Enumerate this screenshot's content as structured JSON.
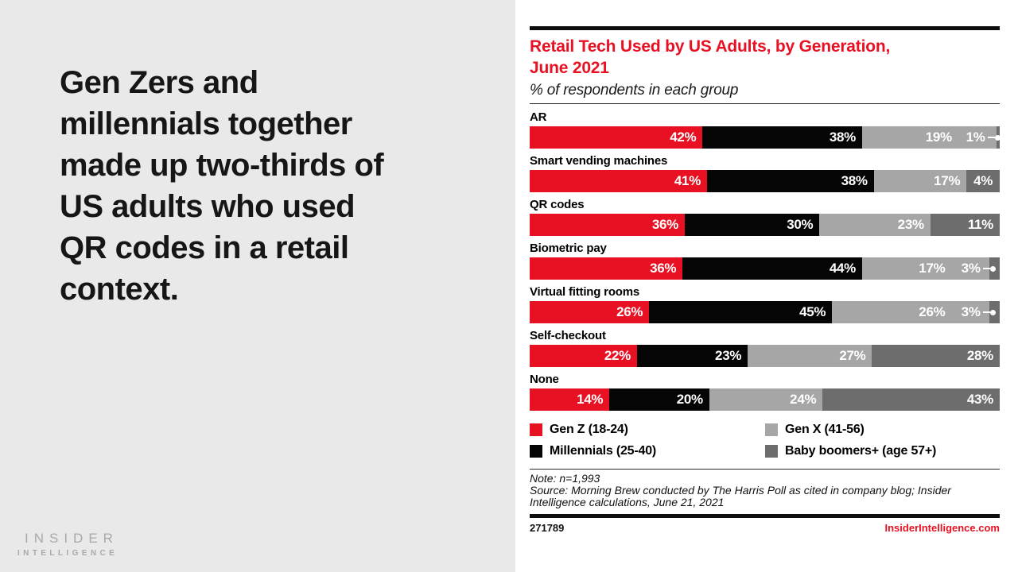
{
  "left_panel": {
    "headline": "Gen Zers and\nmillennials together\nmade up two-thirds of\nUS adults who used\nQR codes in a retail\ncontext.",
    "logo": {
      "line1": "INSIDER",
      "line2": "INTELLIGENCE"
    }
  },
  "chart": {
    "title": "Retail Tech Used by US Adults, by Generation,\nJune 2021",
    "subtitle": "% of respondents in each group",
    "note": "Note: n=1,993",
    "source": "Source: Morning Brew conducted by The Harris Poll as cited in company blog; Insider Intelligence calculations, June 21, 2021",
    "footer_id": "271789",
    "footer_site": "InsiderIntelligence.com"
  },
  "colors": {
    "accent_red": "#e81123",
    "black_segment": "#050505",
    "light_gray_segment": "#a6a6a6",
    "dark_gray_segment": "#6d6d6d",
    "left_panel_bg": "#e9e9e9",
    "logo_gray": "#a9a9a9"
  },
  "chart_data": {
    "type": "bar",
    "orientation": "horizontal-stacked",
    "title": "Retail Tech Used by US Adults, by Generation, June 2021",
    "subtitle": "% of respondents in each group",
    "unit": "%",
    "legend_position": "bottom",
    "categories": [
      "AR",
      "Smart vending machines",
      "QR codes",
      "Biometric pay",
      "Virtual fitting rooms",
      "Self-checkout",
      "None"
    ],
    "series": [
      {
        "name": "Gen Z (18-24)",
        "color": "#e81123",
        "values": [
          42,
          41,
          36,
          36,
          26,
          22,
          14
        ]
      },
      {
        "name": "Millennials (25-40)",
        "color": "#050505",
        "values": [
          38,
          38,
          30,
          44,
          45,
          23,
          20
        ]
      },
      {
        "name": "Gen X (41-56)",
        "color": "#a6a6a6",
        "values": [
          19,
          17,
          23,
          17,
          26,
          27,
          24
        ]
      },
      {
        "name": "Baby boomers+ (age 57+)",
        "color": "#6d6d6d",
        "values": [
          1,
          4,
          11,
          3,
          3,
          28,
          43
        ]
      }
    ]
  }
}
